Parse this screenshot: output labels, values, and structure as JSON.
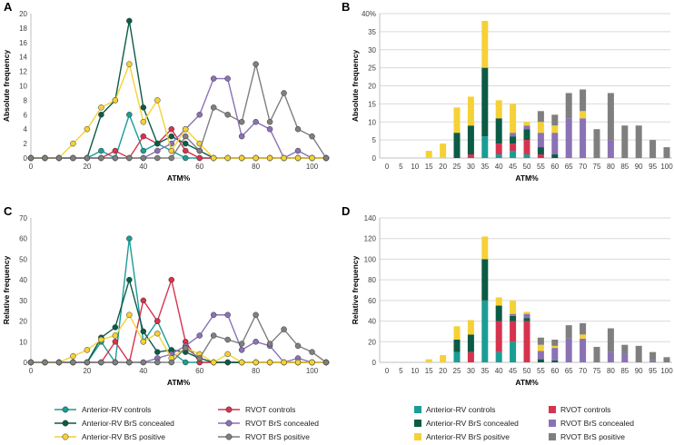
{
  "colors": {
    "anterior_rv_controls": "#1a9d95",
    "anterior_rv_brs_concealed": "#0b5b45",
    "anterior_rv_brs_positive": "#f5d137",
    "rvot_controls": "#d6334f",
    "rvot_brs_concealed": "#8a72b5",
    "rvot_brs_positive": "#7f7f7f"
  },
  "legend": {
    "anterior_rv_controls": "Anterior-RV controls",
    "anterior_rv_brs_concealed": "Anterior-RV BrS concealed",
    "anterior_rv_brs_positive": "Anterior-RV BrS positive",
    "rvot_controls": "RVOT controls",
    "rvot_brs_concealed": "RVOT BrS concealed",
    "rvot_brs_positive": "RVOT BrS positive"
  },
  "chart_data": [
    {
      "panel": "A",
      "type": "line",
      "xlabel": "ATM%",
      "ylabel": "Absolute frequency",
      "ylim": [
        0,
        20
      ],
      "yticks": [
        0,
        2,
        4,
        6,
        8,
        10,
        12,
        14,
        16,
        18,
        20
      ],
      "xlim": [
        0,
        105
      ],
      "xticks": [
        0,
        20,
        40,
        60,
        80,
        100
      ],
      "x": [
        0,
        5,
        10,
        15,
        20,
        25,
        30,
        35,
        40,
        45,
        50,
        55,
        60,
        65,
        70,
        75,
        80,
        85,
        90,
        95,
        100,
        105
      ],
      "series": [
        {
          "key": "anterior_rv_controls",
          "values": [
            0,
            0,
            0,
            0,
            0,
            1,
            0,
            6,
            1,
            2,
            1,
            0,
            0,
            0,
            0,
            0,
            0,
            0,
            0,
            0,
            0,
            0
          ]
        },
        {
          "key": "rvot_controls",
          "values": [
            0,
            0,
            0,
            0,
            0,
            0,
            1,
            0,
            3,
            2,
            4,
            1,
            0,
            0,
            0,
            0,
            0,
            0,
            0,
            0,
            0,
            0
          ]
        },
        {
          "key": "anterior_rv_brs_concealed",
          "values": [
            0,
            0,
            0,
            0,
            0,
            6,
            8,
            19,
            7,
            2,
            3,
            2,
            1,
            0,
            0,
            0,
            0,
            0,
            0,
            0,
            0,
            0
          ]
        },
        {
          "key": "rvot_brs_concealed",
          "values": [
            0,
            0,
            0,
            0,
            0,
            0,
            0,
            0,
            0,
            1,
            2,
            4,
            6,
            11,
            11,
            3,
            5,
            4,
            0,
            1,
            0,
            0
          ]
        },
        {
          "key": "anterior_rv_brs_positive",
          "values": [
            0,
            0,
            0,
            2,
            4,
            7,
            8,
            13,
            5,
            8,
            1,
            4,
            2,
            0,
            0,
            0,
            0,
            0,
            0,
            0,
            0,
            0
          ]
        },
        {
          "key": "rvot_brs_positive",
          "values": [
            0,
            0,
            0,
            0,
            0,
            0,
            0,
            0,
            0,
            0,
            0,
            3,
            1,
            7,
            6,
            5,
            13,
            5,
            9,
            4,
            3,
            0
          ]
        }
      ]
    },
    {
      "panel": "B",
      "type": "bar",
      "stacked": true,
      "xlabel": "ATM%",
      "ylabel": "Absolute frequency",
      "ylim": [
        0,
        40
      ],
      "yticks": [
        "0",
        "5",
        "10",
        "15",
        "20",
        "25",
        "30",
        "35",
        "40%"
      ],
      "categories": [
        "0",
        "5",
        "10",
        "15",
        "20",
        "25",
        "30",
        "35",
        "40",
        "45",
        "50",
        "55",
        "60",
        "65",
        "70",
        "75",
        "80",
        "85",
        "90",
        "95",
        "100"
      ],
      "series": [
        {
          "key": "anterior_rv_controls",
          "values": [
            0,
            0,
            0,
            0,
            0,
            0,
            0,
            6,
            1,
            2,
            1,
            0,
            0,
            0,
            0,
            0,
            0,
            0,
            0,
            0,
            0
          ]
        },
        {
          "key": "rvot_controls",
          "values": [
            0,
            0,
            0,
            0,
            0,
            0,
            1,
            0,
            3,
            2,
            4,
            1,
            0,
            0,
            0,
            0,
            0,
            0,
            0,
            0,
            0
          ]
        },
        {
          "key": "anterior_rv_brs_concealed",
          "values": [
            0,
            0,
            0,
            0,
            0,
            7,
            8,
            19,
            7,
            2,
            3,
            2,
            1,
            0,
            0,
            0,
            0,
            0,
            0,
            0,
            0
          ]
        },
        {
          "key": "rvot_brs_concealed",
          "values": [
            0,
            0,
            0,
            0,
            0,
            0,
            0,
            0,
            0,
            1,
            1,
            4,
            6,
            11,
            11,
            0,
            5,
            0,
            0,
            0,
            0
          ]
        },
        {
          "key": "anterior_rv_brs_positive",
          "values": [
            0,
            0,
            0,
            2,
            4,
            7,
            8,
            13,
            5,
            8,
            1,
            3,
            2,
            0,
            2,
            0,
            0,
            0,
            0,
            0,
            0
          ]
        },
        {
          "key": "rvot_brs_positive",
          "values": [
            0,
            0,
            0,
            0,
            0,
            0,
            0,
            0,
            0,
            0,
            0,
            3,
            3,
            7,
            6,
            8,
            13,
            9,
            9,
            5,
            3
          ]
        }
      ]
    },
    {
      "panel": "C",
      "type": "line",
      "xlabel": "ATM%",
      "ylabel": "Relative frequency",
      "ylim": [
        0,
        70
      ],
      "yticks": [
        0,
        10,
        20,
        30,
        40,
        50,
        60,
        70
      ],
      "xlim": [
        0,
        105
      ],
      "xticks": [
        0,
        20,
        40,
        60,
        80,
        100
      ],
      "x": [
        0,
        5,
        10,
        15,
        20,
        25,
        30,
        35,
        40,
        45,
        50,
        55,
        60,
        65,
        70,
        75,
        80,
        85,
        90,
        95,
        100,
        105
      ],
      "series": [
        {
          "key": "anterior_rv_controls",
          "values": [
            0,
            0,
            0,
            0,
            0,
            10,
            0,
            60,
            10,
            20,
            5,
            0,
            0,
            0,
            0,
            0,
            0,
            0,
            0,
            0,
            0,
            0
          ]
        },
        {
          "key": "rvot_controls",
          "values": [
            0,
            0,
            0,
            0,
            0,
            0,
            10,
            0,
            30,
            20,
            40,
            10,
            0,
            0,
            0,
            0,
            0,
            0,
            0,
            0,
            0,
            0
          ]
        },
        {
          "key": "anterior_rv_brs_concealed",
          "values": [
            0,
            0,
            0,
            0,
            0,
            12,
            17,
            40,
            15,
            5,
            6,
            5,
            2,
            0,
            0,
            0,
            0,
            0,
            0,
            0,
            0,
            0
          ]
        },
        {
          "key": "rvot_brs_concealed",
          "values": [
            0,
            0,
            0,
            0,
            0,
            0,
            0,
            0,
            0,
            2,
            4,
            8,
            13,
            23,
            23,
            6,
            10,
            8,
            0,
            2,
            0,
            0
          ]
        },
        {
          "key": "anterior_rv_brs_positive",
          "values": [
            0,
            0,
            0,
            3,
            6,
            11,
            13,
            23,
            10,
            14,
            2,
            7,
            4,
            0,
            4,
            0,
            0,
            0,
            0,
            0,
            0,
            0
          ]
        },
        {
          "key": "rvot_brs_positive",
          "values": [
            0,
            0,
            0,
            0,
            0,
            0,
            0,
            0,
            0,
            0,
            0,
            7,
            2,
            13,
            11,
            9,
            23,
            9,
            16,
            8,
            5,
            0
          ]
        }
      ]
    },
    {
      "panel": "D",
      "type": "bar",
      "stacked": true,
      "xlabel": "ATM%",
      "ylabel": "Relative frequency",
      "ylim": [
        0,
        140
      ],
      "yticks": [
        "0",
        "20",
        "40",
        "60",
        "80",
        "100",
        "120",
        "140"
      ],
      "categories": [
        "0",
        "5",
        "10",
        "15",
        "20",
        "25",
        "30",
        "35",
        "40",
        "45",
        "50",
        "55",
        "60",
        "65",
        "70",
        "75",
        "80",
        "85",
        "90",
        "95",
        "100"
      ],
      "series": [
        {
          "key": "anterior_rv_controls",
          "values": [
            0,
            0,
            0,
            0,
            0,
            10,
            0,
            60,
            10,
            20,
            0,
            0,
            0,
            0,
            0,
            0,
            0,
            0,
            0,
            0,
            0
          ]
        },
        {
          "key": "rvot_controls",
          "values": [
            0,
            0,
            0,
            0,
            0,
            0,
            10,
            0,
            30,
            20,
            40,
            0,
            0,
            0,
            0,
            0,
            0,
            0,
            0,
            0,
            0
          ]
        },
        {
          "key": "anterior_rv_brs_concealed",
          "values": [
            0,
            0,
            0,
            0,
            0,
            12,
            17,
            40,
            15,
            5,
            3,
            3,
            2,
            0,
            0,
            0,
            0,
            0,
            0,
            0,
            0
          ]
        },
        {
          "key": "rvot_brs_concealed",
          "values": [
            0,
            0,
            0,
            0,
            0,
            0,
            0,
            0,
            0,
            2,
            4,
            8,
            12,
            23,
            23,
            0,
            10,
            8,
            0,
            2,
            0
          ]
        },
        {
          "key": "anterior_rv_brs_positive",
          "values": [
            0,
            0,
            0,
            3,
            7,
            13,
            14,
            22,
            8,
            13,
            2,
            6,
            2,
            0,
            4,
            0,
            0,
            0,
            0,
            0,
            0
          ]
        },
        {
          "key": "rvot_brs_positive",
          "values": [
            0,
            0,
            0,
            0,
            0,
            0,
            0,
            0,
            0,
            0,
            0,
            7,
            6,
            13,
            11,
            15,
            23,
            9,
            16,
            8,
            5
          ]
        }
      ]
    }
  ]
}
